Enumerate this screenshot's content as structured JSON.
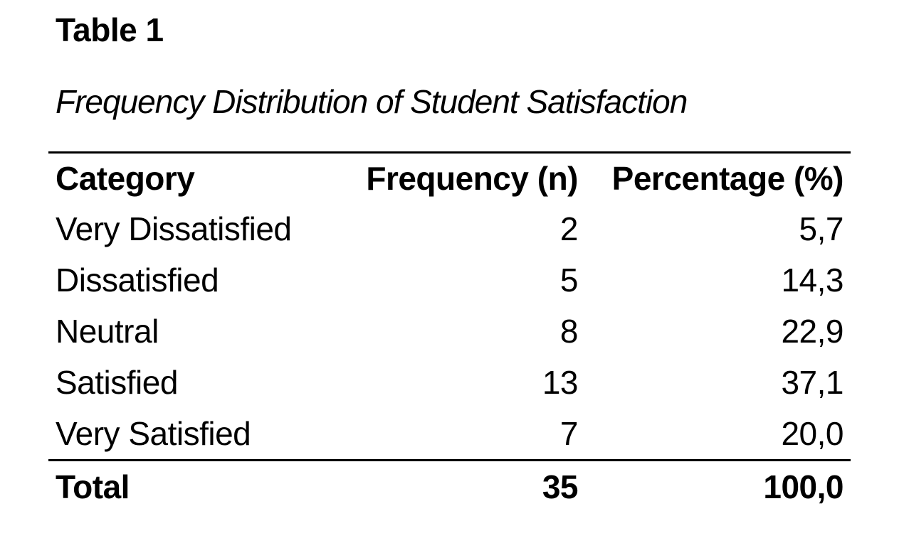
{
  "page": {
    "background_color": "#ffffff",
    "text_color": "#000000"
  },
  "table_label": "Table 1",
  "table_title": "Frequency Distribution of Student Satisfaction",
  "table": {
    "columns": [
      "Category",
      "Frequency (n)",
      "Percentage (%)"
    ],
    "rows": [
      {
        "category": "Very Dissatisfied",
        "frequency": "2",
        "percentage": "5,7"
      },
      {
        "category": "Dissatisfied",
        "frequency": "5",
        "percentage": "14,3"
      },
      {
        "category": "Neutral",
        "frequency": "8",
        "percentage": "22,9"
      },
      {
        "category": "Satisfied",
        "frequency": "13",
        "percentage": "37,1"
      },
      {
        "category": "Very Satisfied",
        "frequency": "7",
        "percentage": "20,0"
      }
    ],
    "total": {
      "category": "Total",
      "frequency": "35",
      "percentage": "100,0"
    }
  }
}
